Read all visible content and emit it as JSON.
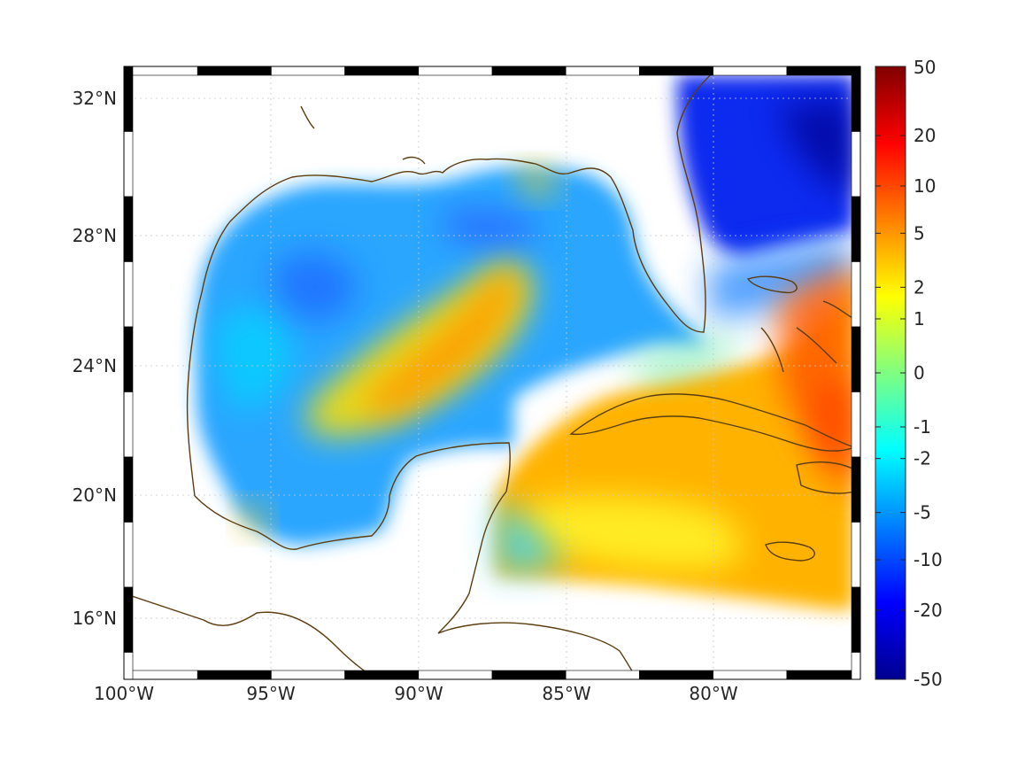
{
  "map": {
    "projection": "mercator",
    "lon_range": [
      -100,
      -75
    ],
    "lat_range": [
      14.3,
      33.0
    ],
    "lon_ticks": [
      {
        "value": -100,
        "label": "100°W"
      },
      {
        "value": -95,
        "label": "95°W"
      },
      {
        "value": -90,
        "label": "90°W"
      },
      {
        "value": -85,
        "label": "85°W"
      },
      {
        "value": -80,
        "label": "80°W"
      }
    ],
    "lat_ticks": [
      {
        "value": 32,
        "label": "32°N"
      },
      {
        "value": 28,
        "label": "28°N"
      },
      {
        "value": 24,
        "label": "24°N"
      },
      {
        "value": 20,
        "label": "20°N"
      },
      {
        "value": 16,
        "label": "16°N"
      }
    ],
    "grid": "dotted",
    "coastline_color": "#5c3d0f",
    "frame_style": "alternating black/white border"
  },
  "colorbar": {
    "scale": "symmetric-log",
    "colormap": "jet",
    "ticks": [
      {
        "value": 50,
        "label": "50"
      },
      {
        "value": 20,
        "label": "20"
      },
      {
        "value": 10,
        "label": "10"
      },
      {
        "value": 5,
        "label": "5"
      },
      {
        "value": 2,
        "label": "2"
      },
      {
        "value": 1,
        "label": "1"
      },
      {
        "value": 0,
        "label": "0"
      },
      {
        "value": -1,
        "label": "-1"
      },
      {
        "value": -2,
        "label": "-2"
      },
      {
        "value": -5,
        "label": "-5"
      },
      {
        "value": -10,
        "label": "-10"
      },
      {
        "value": -20,
        "label": "-20"
      },
      {
        "value": -50,
        "label": "-50"
      }
    ],
    "colors": [
      "#00008f",
      "#0000ff",
      "#0080ff",
      "#00ffff",
      "#80ff80",
      "#ffff00",
      "#ff8000",
      "#ff0000",
      "#800000"
    ]
  }
}
